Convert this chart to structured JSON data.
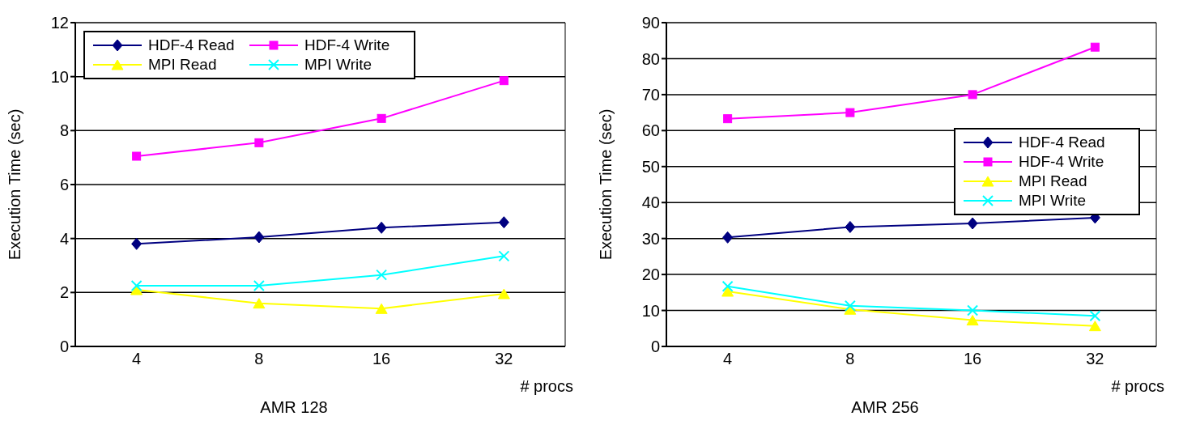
{
  "chart_data": [
    {
      "type": "line",
      "title": "AMR 128",
      "xlabel": "# procs",
      "ylabel": "Execution Time (sec)",
      "categories": [
        "4",
        "8",
        "16",
        "32"
      ],
      "ylim": [
        0,
        12
      ],
      "yticks": [
        0,
        2,
        4,
        6,
        8,
        10,
        12
      ],
      "grid": "y",
      "legend": "top left",
      "series": [
        {
          "name": "HDF-4 Read",
          "color": "#000080",
          "marker": "diamond",
          "values": [
            3.8,
            4.05,
            4.4,
            4.6
          ]
        },
        {
          "name": "HDF-4 Write",
          "color": "#ff00ff",
          "marker": "square",
          "values": [
            7.05,
            7.55,
            8.45,
            9.85
          ]
        },
        {
          "name": "MPI Read",
          "color": "#ffff00",
          "marker": "triangle",
          "values": [
            2.1,
            1.6,
            1.4,
            1.95
          ]
        },
        {
          "name": "MPI Write",
          "color": "#00ffff",
          "marker": "cross",
          "values": [
            2.25,
            2.25,
            2.65,
            3.35
          ]
        }
      ]
    },
    {
      "type": "line",
      "title": "AMR 256",
      "xlabel": "# procs",
      "ylabel": "Execution Time (sec)",
      "categories": [
        "4",
        "8",
        "16",
        "32"
      ],
      "ylim": [
        0,
        90
      ],
      "yticks": [
        0,
        10,
        20,
        30,
        40,
        50,
        60,
        70,
        80,
        90
      ],
      "grid": "y",
      "legend": "right",
      "series": [
        {
          "name": "HDF-4 Read",
          "color": "#000080",
          "marker": "diamond",
          "values": [
            30.3,
            33.2,
            34.2,
            35.8
          ]
        },
        {
          "name": "HDF-4 Write",
          "color": "#ff00ff",
          "marker": "square",
          "values": [
            63.3,
            65,
            70,
            83.2
          ]
        },
        {
          "name": "MPI Read",
          "color": "#ffff00",
          "marker": "triangle",
          "values": [
            15.3,
            10.3,
            7.3,
            5.7
          ]
        },
        {
          "name": "MPI Write",
          "color": "#00ffff",
          "marker": "cross",
          "values": [
            16.7,
            11.3,
            10,
            8.5
          ]
        }
      ]
    }
  ]
}
